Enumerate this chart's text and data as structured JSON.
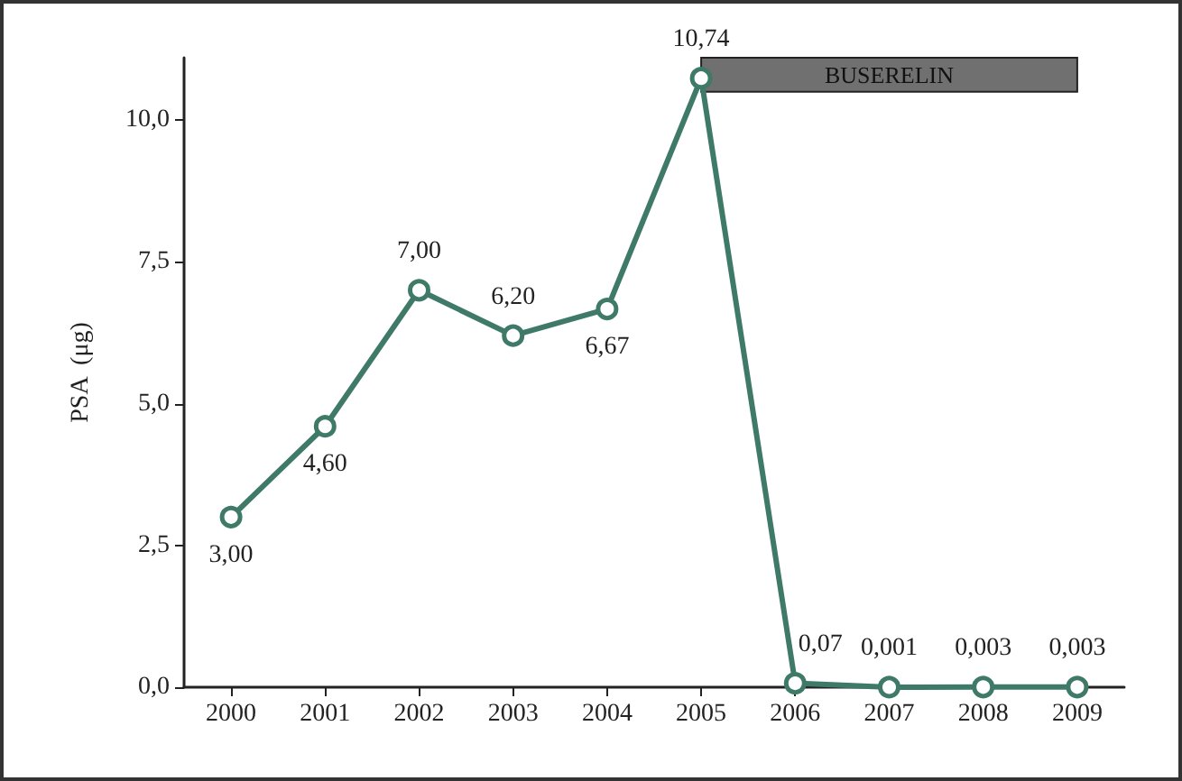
{
  "chart_data": {
    "type": "line",
    "ylabel": "PSA  (μg)",
    "categories": [
      "2000",
      "2001",
      "2002",
      "2003",
      "2004",
      "2005",
      "2006",
      "2007",
      "2008",
      "2009"
    ],
    "series": [
      {
        "color": "#3f7a68",
        "values": [
          3.0,
          4.6,
          7.0,
          6.2,
          6.67,
          10.74,
          0.07,
          0.001,
          0.003,
          0.003
        ],
        "value_labels": [
          "3,00",
          "4,60",
          "7,00",
          "6,20",
          "6,67",
          "10,74",
          "0,07",
          "0,001",
          "0,003",
          "0,003"
        ]
      }
    ],
    "ylim": [
      0,
      11.1
    ],
    "yticks": [
      {
        "value": 0,
        "label": "0,0"
      },
      {
        "value": 2.5,
        "label": "2,5"
      },
      {
        "value": 5,
        "label": "5,0"
      },
      {
        "value": 7.5,
        "label": "7,5"
      },
      {
        "value": 10,
        "label": "10,0"
      }
    ],
    "bands": [
      {
        "axis": "x",
        "from": "2005",
        "to": "2009",
        "label": "BUSERELIN",
        "color": "#707070"
      }
    ],
    "marker": "circle",
    "line_style": "solid"
  }
}
